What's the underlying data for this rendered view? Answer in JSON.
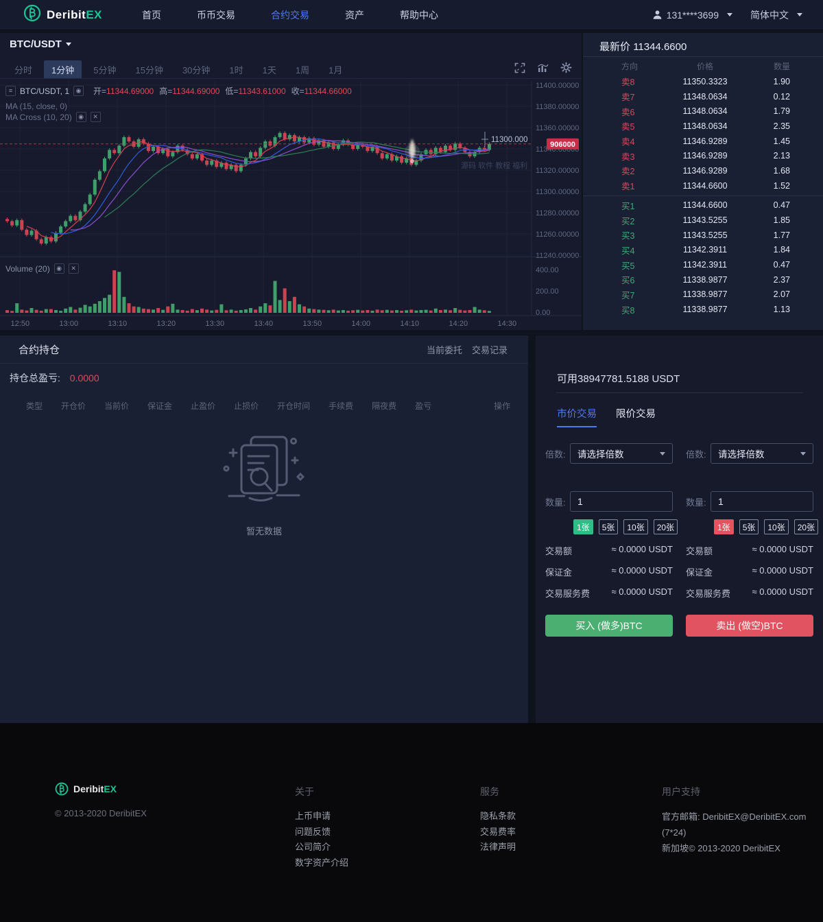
{
  "navbar": {
    "brand": {
      "name_main": "Deribit",
      "name_suffix": "EX"
    },
    "menu": [
      {
        "label": "首页",
        "active": false
      },
      {
        "label": "币币交易",
        "active": false
      },
      {
        "label": "合约交易",
        "active": true
      },
      {
        "label": "资产",
        "active": false
      },
      {
        "label": "帮助中心",
        "active": false
      }
    ],
    "user": "131****3699",
    "language": "简体中文"
  },
  "chart_panel": {
    "pair": "BTC/USDT",
    "timeframes": [
      "分时",
      "1分钟",
      "5分钟",
      "15分钟",
      "30分钟",
      "1时",
      "1天",
      "1周",
      "1月"
    ],
    "active_timeframe": "1分钟",
    "legend": {
      "symbol_text": "BTC/USDT, 1",
      "ohlc": [
        {
          "k": "开",
          "v": "11344.69000"
        },
        {
          "k": "高",
          "v": "11344.69000"
        },
        {
          "k": "低",
          "v": "11343.61000"
        },
        {
          "k": "收",
          "v": "11344.66000"
        }
      ],
      "ma1": "MA (15, close, 0)",
      "ma2": "MA Cross (10, 20)",
      "volume": "Volume (20)"
    },
    "price_axis": [
      "11400.00000",
      "11380.00000",
      "11360.00000",
      "11340.00000",
      "11320.00000",
      "11300.00000",
      "11280.00000",
      "11260.00000",
      "11240.00000"
    ],
    "volume_axis": [
      "400.00",
      "200.00",
      "0.00"
    ],
    "time_axis": [
      "12:50",
      "13:00",
      "13:10",
      "13:20",
      "13:30",
      "13:40",
      "13:50",
      "14:00",
      "14:10",
      "14:20",
      "14:30"
    ],
    "price_badge": "906000",
    "crosshair_label": "11300.000",
    "watermark": "源码 软件 教程 福利",
    "chart_data": {
      "type": "candlestick+volume",
      "interval": "1m",
      "last_price": 11344.66,
      "price_range": [
        11240,
        11400
      ],
      "volume_range": [
        0,
        400
      ],
      "closes": [
        11272,
        11268,
        11273,
        11264,
        11259,
        11263,
        11255,
        11251,
        11257,
        11253,
        11261,
        11267,
        11272,
        11277,
        11273,
        11281,
        11288,
        11297,
        11311,
        11319,
        11331,
        11339,
        11336,
        11343,
        11351,
        11347,
        11342,
        11349,
        11345,
        11338,
        11342,
        11336,
        11340,
        11333,
        11337,
        11343,
        11339,
        11335,
        11331,
        11335,
        11329,
        11325,
        11329,
        11323,
        11327,
        11321,
        11325,
        11319,
        11325,
        11331,
        11337,
        11333,
        11341,
        11347,
        11343,
        11351,
        11355,
        11349,
        11353,
        11347,
        11351,
        11346,
        11350,
        11344,
        11348,
        11342,
        11346,
        11340,
        11344,
        11348,
        11344,
        11340,
        11344,
        11342,
        11338,
        11342,
        11336,
        11331,
        11335,
        11329,
        11333,
        11327,
        11331,
        11325,
        11329,
        11335,
        11339,
        11335,
        11341,
        11337,
        11343,
        11339,
        11345,
        11341,
        11337,
        11333,
        11337,
        11341,
        11339,
        11344.66
      ],
      "volumes": [
        25,
        18,
        90,
        30,
        22,
        45,
        28,
        20,
        35,
        35,
        26,
        19,
        40,
        55,
        30,
        48,
        75,
        60,
        85,
        110,
        140,
        170,
        400,
        385,
        150,
        90,
        60,
        55,
        40,
        35,
        30,
        45,
        28,
        60,
        85,
        30,
        26,
        20,
        35,
        25,
        40,
        30,
        22,
        28,
        80,
        24,
        30,
        20,
        26,
        32,
        45,
        30,
        60,
        90,
        70,
        300,
        120,
        230,
        110,
        150,
        80,
        60,
        40,
        35,
        30,
        28,
        24,
        30,
        22,
        26,
        20,
        24,
        28,
        22,
        26,
        20,
        30,
        24,
        28,
        22,
        26,
        20,
        24,
        30,
        22,
        26,
        28,
        22,
        40,
        26,
        30,
        24,
        45,
        28,
        22,
        26,
        55,
        30,
        24,
        18
      ]
    }
  },
  "order_book": {
    "title_label": "最新价",
    "last_price": "11344.6600",
    "columns": [
      "方向",
      "价格",
      "数量"
    ],
    "asks": [
      [
        "卖8",
        "11350.3323",
        "1.90"
      ],
      [
        "卖7",
        "11348.0634",
        "0.12"
      ],
      [
        "卖6",
        "11348.0634",
        "1.79"
      ],
      [
        "卖5",
        "11348.0634",
        "2.35"
      ],
      [
        "卖4",
        "11346.9289",
        "1.45"
      ],
      [
        "卖3",
        "11346.9289",
        "2.13"
      ],
      [
        "卖2",
        "11346.9289",
        "1.68"
      ],
      [
        "卖1",
        "11344.6600",
        "1.52"
      ]
    ],
    "bids": [
      [
        "买1",
        "11344.6600",
        "0.47"
      ],
      [
        "买2",
        "11343.5255",
        "1.85"
      ],
      [
        "买3",
        "11343.5255",
        "1.77"
      ],
      [
        "买4",
        "11342.3911",
        "1.84"
      ],
      [
        "买5",
        "11342.3911",
        "0.47"
      ],
      [
        "买6",
        "11338.9877",
        "2.37"
      ],
      [
        "买7",
        "11338.9877",
        "2.07"
      ],
      [
        "买8",
        "11338.9877",
        "1.13"
      ]
    ]
  },
  "positions": {
    "title": "合约持仓",
    "links": [
      "当前委托",
      "交易记录"
    ],
    "pnl_label": "持仓总盈亏:",
    "pnl_value": "0.0000",
    "columns": [
      "类型",
      "开仓价",
      "当前价",
      "保证金",
      "止盈价",
      "止损价",
      "开仓时间",
      "手续费",
      "隔夜费",
      "盈亏",
      "操作"
    ],
    "empty_text": "暂无数据"
  },
  "trade_panel": {
    "available": "可用38947781.5188 USDT",
    "tabs": [
      {
        "label": "市价交易",
        "active": true
      },
      {
        "label": "限价交易",
        "active": false
      }
    ],
    "leverage_label": "倍数:",
    "leverage_placeholder": "请选择倍数",
    "amount_label": "数量:",
    "amount_value": "1",
    "chips": [
      "1张",
      "5张",
      "10张",
      "20张"
    ],
    "summary": [
      {
        "label": "交易额",
        "value": "≈ 0.0000 USDT"
      },
      {
        "label": "保证金",
        "value": "≈ 0.0000 USDT"
      },
      {
        "label": "交易服务费",
        "value": "≈ 0.0000 USDT"
      }
    ],
    "buy_button": "买入 (做多)BTC",
    "sell_button": "卖出 (做空)BTC"
  },
  "footer": {
    "brand": {
      "name_main": "Deribit",
      "name_suffix": "EX"
    },
    "copyright": "© 2013-2020 DeribitEX",
    "columns": [
      {
        "title": "关于",
        "links": [
          "上币申请",
          "问题反馈",
          "公司简介",
          "数字资产介绍"
        ]
      },
      {
        "title": "服务",
        "links": [
          "隐私条款",
          "交易费率",
          "法律声明"
        ]
      },
      {
        "title": "用户支持",
        "lines": [
          "官方邮箱: DeribitEX@DeribitEX.com (7*24)",
          "新加坡© 2013-2020 DeribitEX"
        ]
      }
    ]
  },
  "colors": {
    "accent_blue": "#4d79f6",
    "sell_red": "#d5495c",
    "buy_green": "#41a876",
    "candle_up": "#3f9e6a",
    "candle_down": "#cb4351",
    "chip_green": "#2ebd85",
    "chip_red": "#e4535f",
    "button_green": "#4caf72",
    "button_red": "#e15360",
    "badge_red": "#c62f47",
    "brand_teal": "#18c695"
  }
}
